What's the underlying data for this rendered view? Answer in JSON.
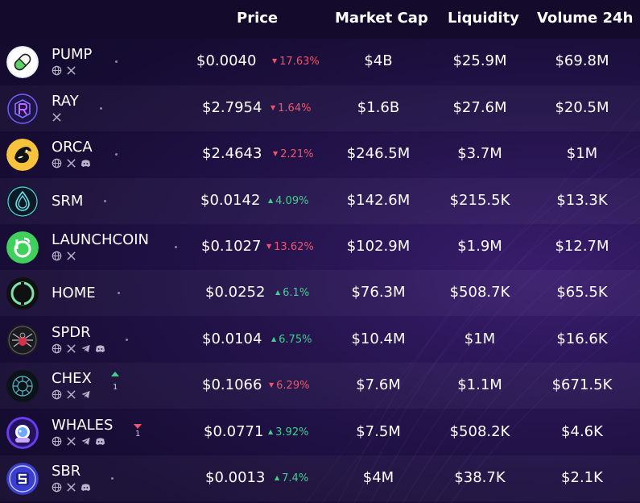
{
  "columns": {
    "price": "Price",
    "market_cap": "Market Cap",
    "liquidity": "Liquidity",
    "volume": "Volume 24h"
  },
  "tokens": [
    {
      "name": "PUMP",
      "socials": [
        "globe-icon",
        "x-icon"
      ],
      "price": "$0.0040",
      "change": "17.63%",
      "direction": "down",
      "market_cap": "$4B",
      "liquidity": "$25.9M",
      "volume": "$69.8M"
    },
    {
      "name": "RAY",
      "socials": [
        "x-icon"
      ],
      "price": "$2.7954",
      "change": "1.64%",
      "direction": "down",
      "market_cap": "$1.6B",
      "liquidity": "$27.6M",
      "volume": "$20.5M"
    },
    {
      "name": "ORCA",
      "socials": [
        "globe-icon",
        "x-icon",
        "discord-icon"
      ],
      "price": "$2.4643",
      "change": "2.21%",
      "direction": "down",
      "market_cap": "$246.5M",
      "liquidity": "$3.7M",
      "volume": "$1M"
    },
    {
      "name": "SRM",
      "socials": [],
      "price": "$0.0142",
      "change": "4.09%",
      "direction": "up",
      "market_cap": "$142.6M",
      "liquidity": "$215.5K",
      "volume": "$13.3K"
    },
    {
      "name": "LAUNCHCOIN",
      "socials": [
        "globe-icon",
        "x-icon"
      ],
      "price": "$0.1027",
      "change": "13.62%",
      "direction": "down",
      "market_cap": "$102.9M",
      "liquidity": "$1.9M",
      "volume": "$12.7M"
    },
    {
      "name": "HOME",
      "socials": [],
      "price": "$0.0252",
      "change": "6.1%",
      "direction": "up",
      "market_cap": "$76.3M",
      "liquidity": "$508.7K",
      "volume": "$65.5K"
    },
    {
      "name": "SPDR",
      "socials": [
        "globe-icon",
        "x-icon",
        "telegram-icon",
        "discord-icon"
      ],
      "price": "$0.0104",
      "change": "6.75%",
      "direction": "up",
      "market_cap": "$10.4M",
      "liquidity": "$1M",
      "volume": "$16.6K"
    },
    {
      "name": "CHEX",
      "socials": [
        "globe-icon",
        "x-icon",
        "telegram-icon"
      ],
      "rank_change": "1",
      "rank_direction": "up",
      "price": "$0.1066",
      "change": "6.29%",
      "direction": "down",
      "market_cap": "$7.6M",
      "liquidity": "$1.1M",
      "volume": "$671.5K"
    },
    {
      "name": "WHALES",
      "socials": [
        "globe-icon",
        "x-icon",
        "telegram-icon",
        "discord-icon"
      ],
      "rank_change": "1",
      "rank_direction": "down",
      "price": "$0.0771",
      "change": "3.92%",
      "direction": "up",
      "market_cap": "$7.5M",
      "liquidity": "$508.2K",
      "volume": "$4.6K"
    },
    {
      "name": "SBR",
      "socials": [
        "globe-icon",
        "x-icon",
        "discord-icon"
      ],
      "price": "$0.0013",
      "change": "7.4%",
      "direction": "up",
      "market_cap": "$4M",
      "liquidity": "$38.7K",
      "volume": "$2.1K"
    }
  ],
  "colors": {
    "down": "#f0556b",
    "up": "#40cf8b",
    "background": "#160c33"
  }
}
